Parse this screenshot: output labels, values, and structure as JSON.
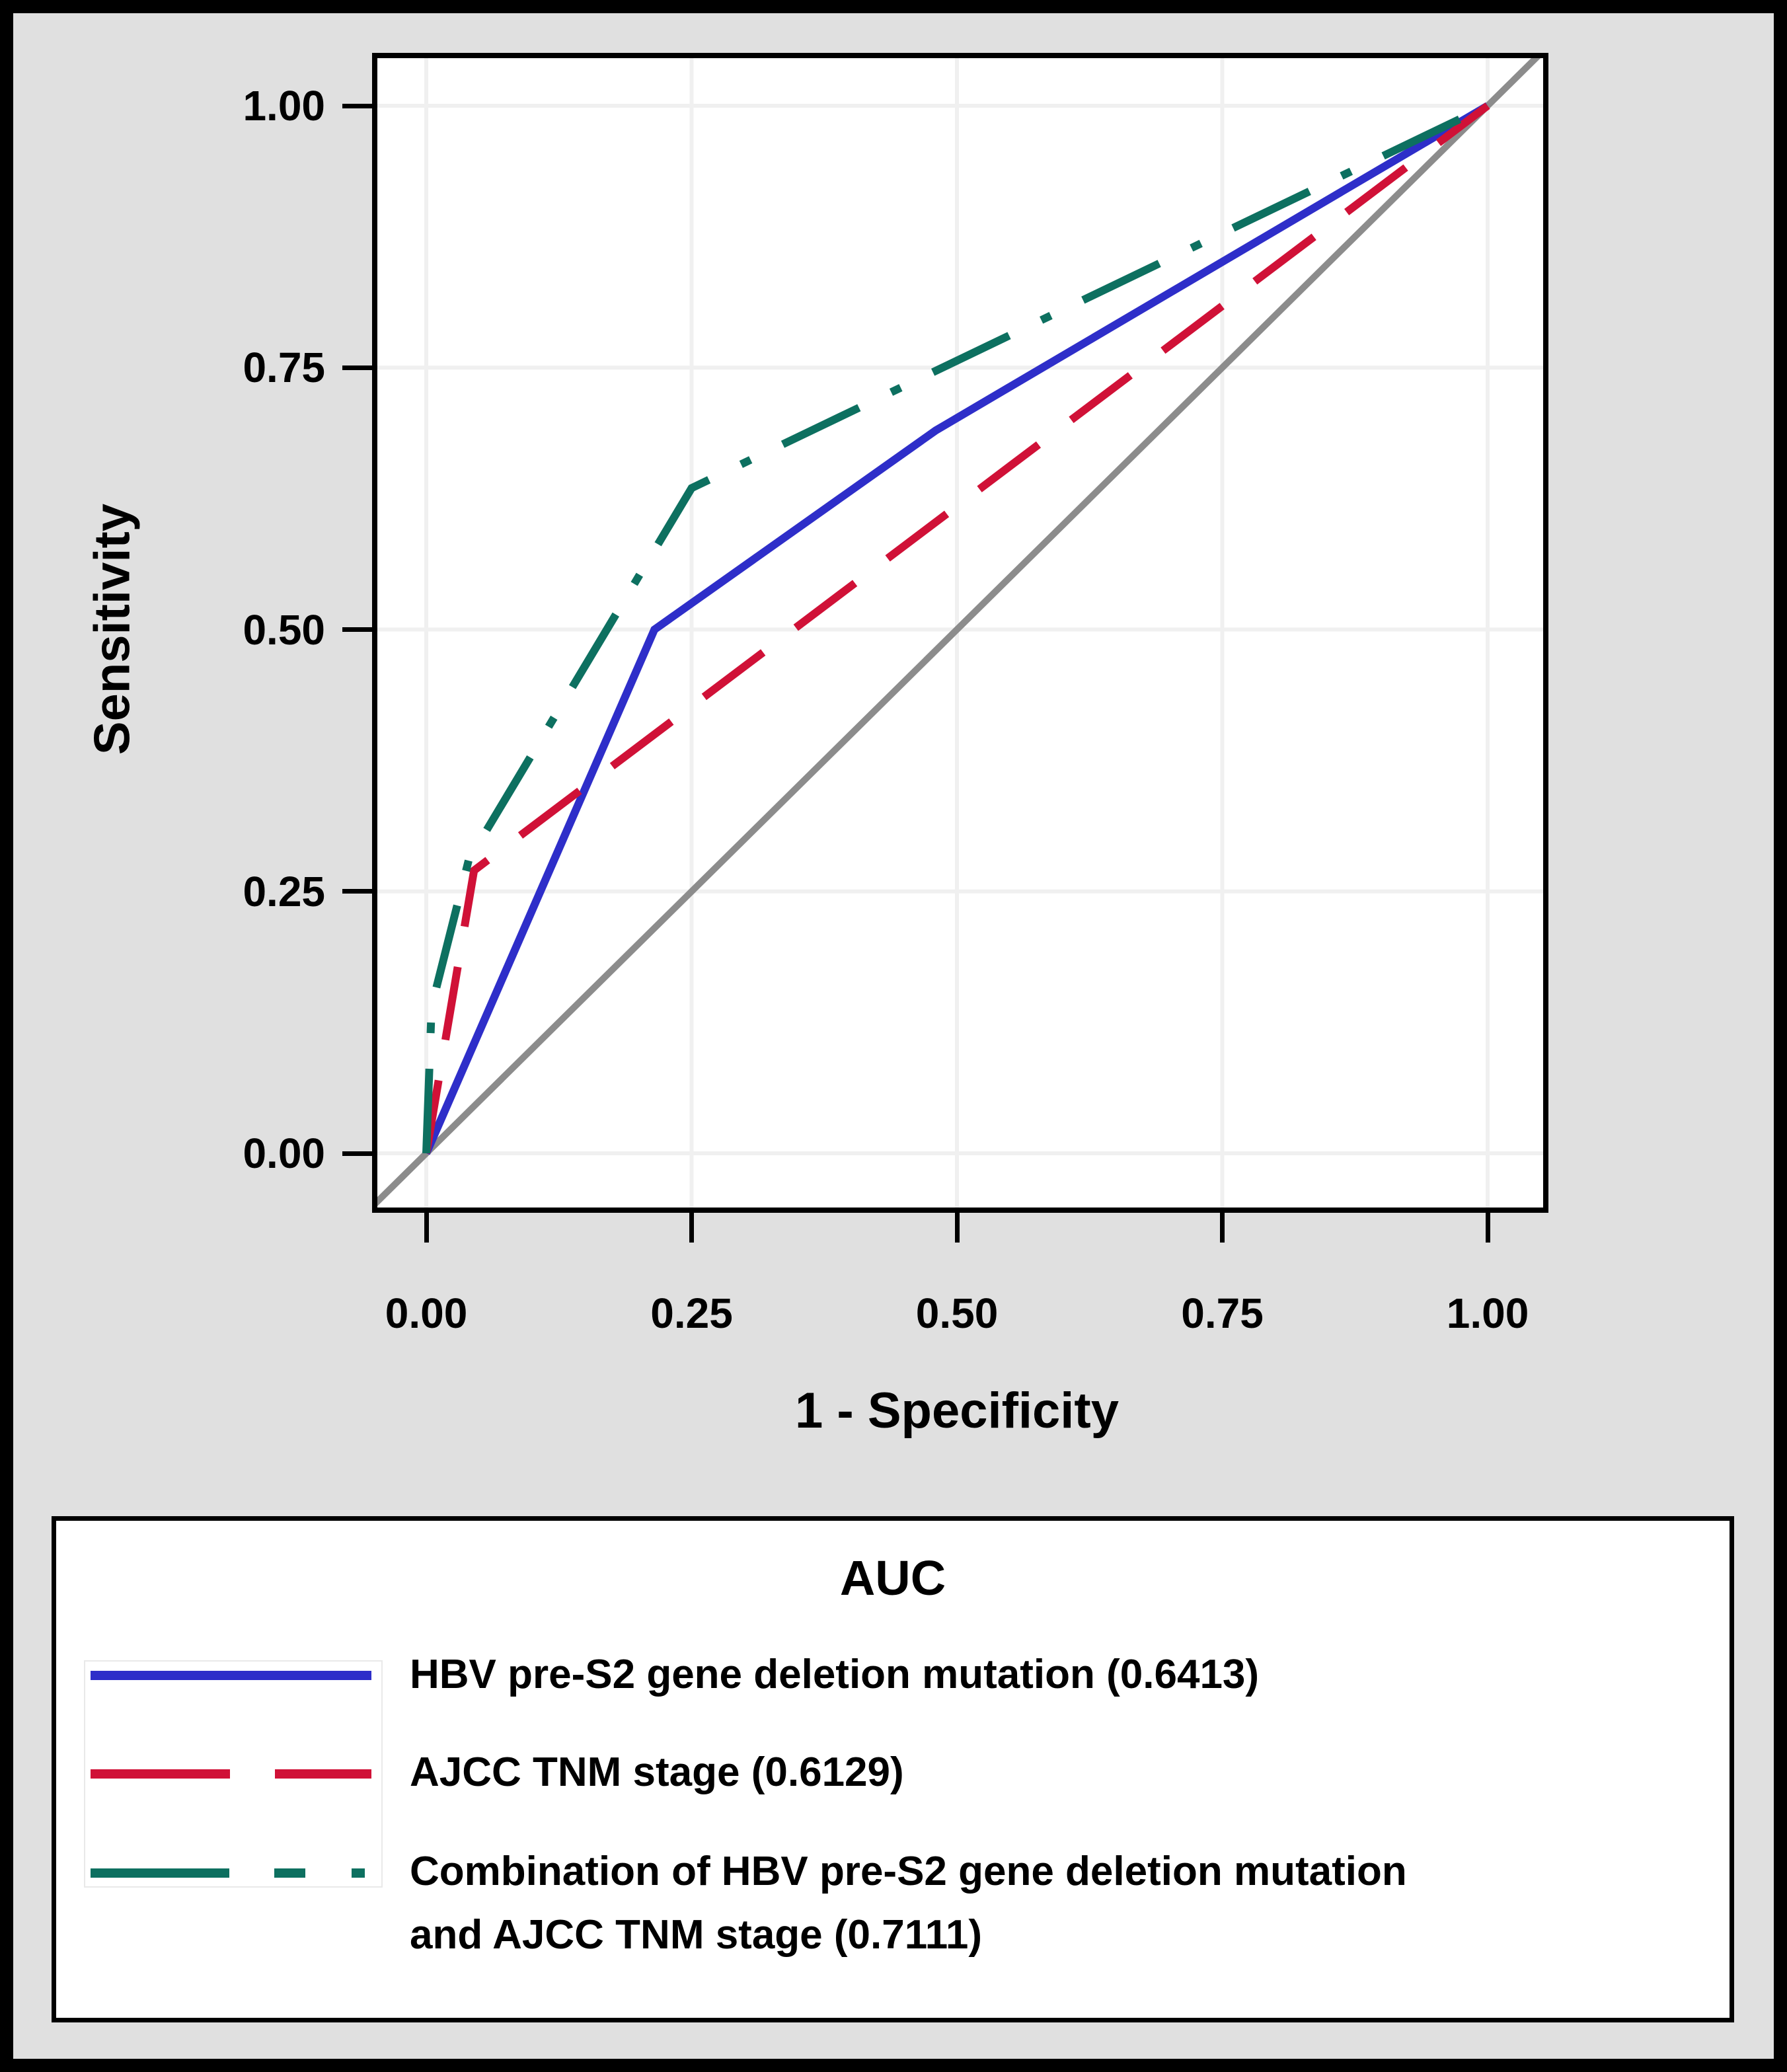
{
  "figure": {
    "background": "#e0e0e0",
    "panel_background": "#ffffff",
    "frame_color": "#000000",
    "gridline_color": "#f0f0f0"
  },
  "axes": {
    "x": {
      "title": "1 - Specificity",
      "tick_values": [
        0,
        0.25,
        0.5,
        0.75,
        1
      ],
      "tick_labels": [
        "0.00",
        "0.25",
        "0.50",
        "0.75",
        "1.00"
      ]
    },
    "y": {
      "title": "Sensitivity",
      "tick_values": [
        0,
        0.25,
        0.5,
        0.75,
        1
      ],
      "tick_labels": [
        "0.00",
        "0.25",
        "0.50",
        "0.75",
        "1.00"
      ]
    }
  },
  "legend": {
    "title": "AUC",
    "entries": [
      {
        "lines": [
          "HBV pre-S2 gene deletion mutation (0.6413)"
        ]
      },
      {
        "lines": [
          "AJCC TNM stage (0.6129)"
        ]
      },
      {
        "lines": [
          "Combination of HBV pre-S2 gene deletion mutation",
          "and AJCC TNM stage (0.7111)"
        ]
      }
    ]
  },
  "chart_data": {
    "type": "line",
    "subtype": "roc-curve",
    "title": "",
    "xlabel": "1 - Specificity",
    "ylabel": "Sensitivity",
    "xlim": [
      -0.05,
      1.05
    ],
    "ylim": [
      -0.05,
      1.05
    ],
    "grid": true,
    "legend_position": "bottom",
    "series": [
      {
        "name": "HBV pre-S2 gene deletion mutation",
        "auc": 0.6413,
        "color": "#2e2ec9",
        "dash": [],
        "legend_dash": [],
        "points": [
          [
            0,
            0
          ],
          [
            0.215,
            0.5
          ],
          [
            0.48,
            0.69
          ],
          [
            1,
            1
          ]
        ]
      },
      {
        "name": "AJCC TNM stage",
        "auc": 0.6129,
        "color": "#d01137",
        "dash": [
          112,
          62
        ],
        "legend_dash": [
          211,
          68
        ],
        "points": [
          [
            0,
            0
          ],
          [
            0.045,
            0.27
          ],
          [
            1,
            1
          ]
        ]
      },
      {
        "name": "Combination of HBV pre-S2 gene deletion mutation and AJCC TNM stage",
        "auc": 0.7111,
        "color": "#0d7060",
        "dash": [
          128,
          54,
          16,
          54
        ],
        "legend_dash": [
          210,
          68,
          47,
          70,
          20,
          9999
        ],
        "points": [
          [
            0,
            0
          ],
          [
            0.005,
            0.14
          ],
          [
            0.04,
            0.28
          ],
          [
            0.25,
            0.635
          ],
          [
            1,
            1
          ]
        ]
      }
    ],
    "reference_line": {
      "color": "#8c8c8c",
      "points": [
        [
          -0.06,
          -0.06
        ],
        [
          1.06,
          1.06
        ]
      ]
    }
  }
}
